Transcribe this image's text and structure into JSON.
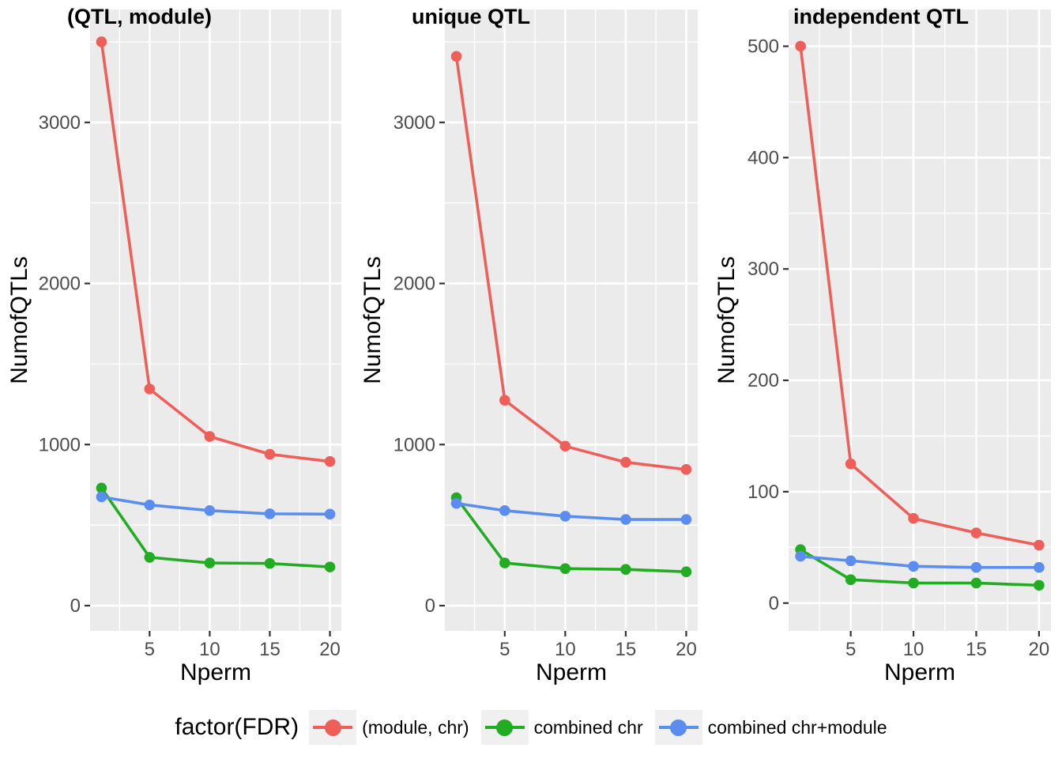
{
  "panel_style": {
    "panel_bg": "#EBEBEB",
    "grid_color": "#FFFFFF",
    "tick_mark_color": "#333333",
    "tick_label_color": "#4D4D4D"
  },
  "legend": {
    "title": "factor(FDR)",
    "items": [
      {
        "label": "(module, chr)",
        "color": "#EE5F5A"
      },
      {
        "label": "combined chr",
        "color": "#22AC22"
      },
      {
        "label": "combined chr+module",
        "color": "#5B8DEE"
      }
    ]
  },
  "chart_data": [
    {
      "type": "line",
      "title": "(QTL, module)",
      "xlabel": "Nperm",
      "ylabel": "NumofQTLs",
      "x": [
        1,
        5,
        10,
        15,
        20
      ],
      "series": [
        {
          "name": "(module, chr)",
          "color": "#EE5F5A",
          "values": [
            3500,
            1345,
            1050,
            940,
            895
          ]
        },
        {
          "name": "combined chr",
          "color": "#22AC22",
          "values": [
            730,
            300,
            265,
            262,
            240
          ]
        },
        {
          "name": "combined chr+module",
          "color": "#5B8DEE",
          "values": [
            675,
            625,
            590,
            570,
            568
          ]
        }
      ],
      "xticks": [
        5,
        10,
        15,
        20
      ],
      "xticks_minor": [
        2.5,
        7.5,
        12.5,
        17.5
      ],
      "yticks": [
        0,
        1000,
        2000,
        3000
      ],
      "yticks_minor": [
        500,
        1500,
        2500,
        3500
      ],
      "xlim": [
        0.05,
        20.95
      ],
      "ylim": [
        -157,
        3701
      ],
      "grid": true,
      "legend_position": "bottom"
    },
    {
      "type": "line",
      "title": "unique QTL",
      "xlabel": "Nperm",
      "ylabel": "NumofQTLs",
      "x": [
        1,
        5,
        10,
        15,
        20
      ],
      "series": [
        {
          "name": "(module, chr)",
          "color": "#EE5F5A",
          "values": [
            3410,
            1275,
            990,
            890,
            845
          ]
        },
        {
          "name": "combined chr",
          "color": "#22AC22",
          "values": [
            670,
            265,
            230,
            225,
            210
          ]
        },
        {
          "name": "combined chr+module",
          "color": "#5B8DEE",
          "values": [
            635,
            590,
            555,
            535,
            535
          ]
        }
      ],
      "xticks": [
        5,
        10,
        15,
        20
      ],
      "xticks_minor": [
        2.5,
        7.5,
        12.5,
        17.5
      ],
      "yticks": [
        0,
        1000,
        2000,
        3000
      ],
      "yticks_minor": [
        500,
        1500,
        2500,
        3500
      ],
      "xlim": [
        0.05,
        20.95
      ],
      "ylim": [
        -157,
        3701
      ],
      "grid": true,
      "legend_position": "bottom"
    },
    {
      "type": "line",
      "title": "independent QTL",
      "xlabel": "Nperm",
      "ylabel": "NumofQTLs",
      "x": [
        1,
        5,
        10,
        15,
        20
      ],
      "series": [
        {
          "name": "(module, chr)",
          "color": "#EE5F5A",
          "values": [
            500,
            125,
            76,
            63,
            52
          ]
        },
        {
          "name": "combined chr",
          "color": "#22AC22",
          "values": [
            48,
            21,
            18,
            18,
            16
          ]
        },
        {
          "name": "combined chr+module",
          "color": "#5B8DEE",
          "values": [
            42,
            38,
            33,
            32,
            32
          ]
        }
      ],
      "xticks": [
        5,
        10,
        15,
        20
      ],
      "xticks_minor": [
        2.5,
        7.5,
        12.5,
        17.5
      ],
      "yticks": [
        0,
        100,
        200,
        300,
        400,
        500
      ],
      "yticks_minor": [
        50,
        150,
        250,
        350,
        450
      ],
      "xlim": [
        0.05,
        20.95
      ],
      "ylim": [
        -25,
        533
      ],
      "grid": true,
      "legend_position": "bottom"
    }
  ]
}
